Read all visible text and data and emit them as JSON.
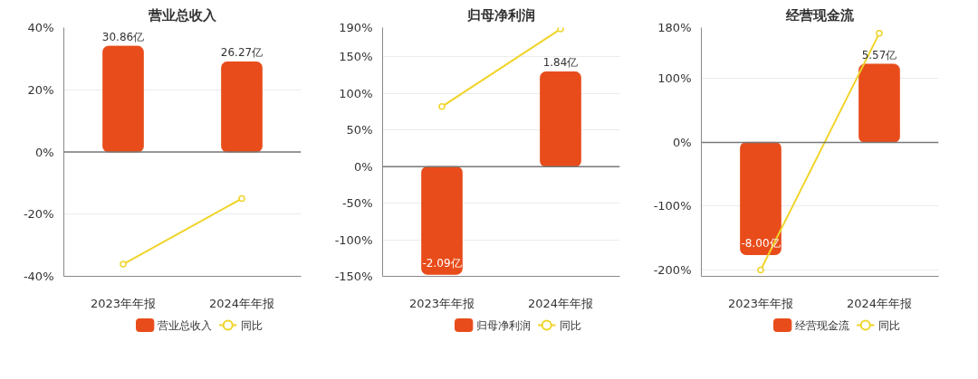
{
  "chart_data": [
    {
      "type": "bar",
      "title": "营业总收入",
      "categories": [
        "2023年年报",
        "2024年年报"
      ],
      "ylim": [
        -40,
        40
      ],
      "yticks": [
        {
          "value": -40,
          "label": "-40%"
        },
        {
          "value": -20,
          "label": "-20%"
        },
        {
          "value": 0,
          "label": "0%"
        },
        {
          "value": 20,
          "label": "20%"
        },
        {
          "value": 40,
          "label": "40%"
        }
      ],
      "y2lim": [
        -36.3,
        36.3
      ],
      "grid": "y",
      "legend": "bottom",
      "series": [
        {
          "name": "营业总收入",
          "axis": "y2",
          "color": "#e84c1a",
          "values": [
            30.86,
            26.27
          ],
          "value_labels": [
            "30.86亿",
            "26.27亿"
          ]
        },
        {
          "name": "同比",
          "type": "line",
          "color": "#f0d42a",
          "marker": "circle",
          "values": [
            -36.1,
            -15.0
          ]
        }
      ]
    },
    {
      "type": "bar",
      "title": "归母净利润",
      "categories": [
        "2023年年报",
        "2024年年报"
      ],
      "ylim": [
        -150,
        190
      ],
      "yticks": [
        {
          "value": -150,
          "label": "-150%"
        },
        {
          "value": -100,
          "label": "-100%"
        },
        {
          "value": -50,
          "label": "-50%"
        },
        {
          "value": 0,
          "label": "0%"
        },
        {
          "value": 50,
          "label": "50%"
        },
        {
          "value": 100,
          "label": "100%"
        },
        {
          "value": 150,
          "label": "150%"
        },
        {
          "value": 190,
          "label": "190%"
        }
      ],
      "y2lim": [
        -2.13,
        2.7
      ],
      "grid": "y",
      "legend": "bottom",
      "series": [
        {
          "name": "归母净利润",
          "axis": "y2",
          "color": "#e84c1a",
          "values": [
            -2.09,
            1.84
          ],
          "value_labels": [
            "-2.09亿",
            "1.84亿"
          ]
        },
        {
          "name": "同比",
          "type": "line",
          "color": "#f0d42a",
          "marker": "circle",
          "values": [
            82,
            188
          ]
        }
      ]
    },
    {
      "type": "bar",
      "title": "经营现金流",
      "categories": [
        "2023年年报",
        "2024年年报"
      ],
      "ylim": [
        -210,
        180
      ],
      "yticks": [
        {
          "value": -200,
          "label": "-200%"
        },
        {
          "value": -100,
          "label": "-100%"
        },
        {
          "value": 0,
          "label": "0%"
        },
        {
          "value": 100,
          "label": "100%"
        },
        {
          "value": 180,
          "label": "180%"
        }
      ],
      "y2lim": [
        -9.55,
        8.18
      ],
      "grid": "y",
      "legend": "bottom",
      "series": [
        {
          "name": "经营现金流",
          "axis": "y2",
          "color": "#e84c1a",
          "values": [
            -8.0,
            5.57
          ],
          "value_labels": [
            "-8.00亿",
            "5.57亿"
          ]
        },
        {
          "name": "同比",
          "type": "line",
          "color": "#f0d42a",
          "marker": "circle",
          "values": [
            -200,
            171
          ]
        }
      ]
    }
  ]
}
